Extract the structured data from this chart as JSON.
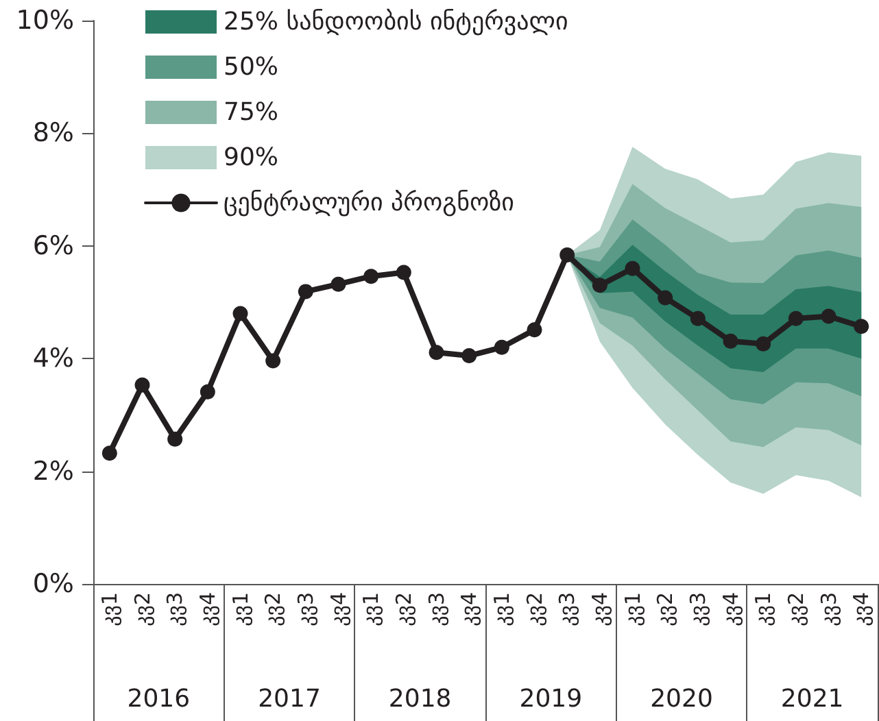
{
  "chart_data": {
    "type": "line",
    "categories": [
      "კვ1",
      "კვ2",
      "კვ3",
      "კვ4",
      "კვ1",
      "კვ2",
      "კვ3",
      "კვ4",
      "კვ1",
      "კვ2",
      "კვ3",
      "კვ4",
      "კვ1",
      "კვ2",
      "კვ3",
      "კვ4",
      "კვ1",
      "კვ2",
      "კვ3",
      "კვ4",
      "კვ1",
      "კვ2",
      "კვ3",
      "კვ4"
    ],
    "series": [
      {
        "type": "area",
        "name": "90%",
        "color": "#b8d4cb",
        "values": [
          null,
          null,
          null,
          null,
          null,
          null,
          null,
          null,
          null,
          null,
          null,
          null,
          null,
          null,
          null,
          null,
          null,
          null,
          null,
          null,
          null,
          null,
          null,
          null
        ],
        "lower": [
          null,
          null,
          null,
          null,
          null,
          null,
          null,
          null,
          null,
          null,
          null,
          null,
          null,
          null,
          5.84,
          4.3,
          3.48,
          2.83,
          2.29,
          1.8,
          1.6,
          1.93,
          1.83,
          1.54
        ],
        "upper": [
          null,
          null,
          null,
          null,
          null,
          null,
          null,
          null,
          null,
          null,
          null,
          null,
          null,
          null,
          5.84,
          6.28,
          7.76,
          7.37,
          7.18,
          6.84,
          6.91,
          7.49,
          7.66,
          7.6
        ]
      },
      {
        "type": "area",
        "name": "75%",
        "color": "#8ab7a8",
        "values": [
          null,
          null,
          null,
          null,
          null,
          null,
          null,
          null,
          null,
          null,
          null,
          null,
          null,
          null,
          null,
          null,
          null,
          null,
          null,
          null,
          null,
          null,
          null,
          null
        ],
        "lower": [
          null,
          null,
          null,
          null,
          null,
          null,
          null,
          null,
          null,
          null,
          null,
          null,
          null,
          null,
          5.84,
          4.63,
          4.23,
          3.63,
          3.08,
          2.53,
          2.43,
          2.78,
          2.73,
          2.46
        ],
        "upper": [
          null,
          null,
          null,
          null,
          null,
          null,
          null,
          null,
          null,
          null,
          null,
          null,
          null,
          null,
          5.84,
          5.98,
          7.1,
          6.67,
          6.37,
          6.06,
          6.1,
          6.66,
          6.76,
          6.69
        ]
      },
      {
        "type": "area",
        "name": "50%",
        "color": "#5a9a86",
        "values": [
          null,
          null,
          null,
          null,
          null,
          null,
          null,
          null,
          null,
          null,
          null,
          null,
          null,
          null,
          null,
          null,
          null,
          null,
          null,
          null,
          null,
          null,
          null,
          null
        ],
        "lower": [
          null,
          null,
          null,
          null,
          null,
          null,
          null,
          null,
          null,
          null,
          null,
          null,
          null,
          null,
          5.84,
          4.9,
          4.73,
          4.18,
          3.73,
          3.28,
          3.19,
          3.58,
          3.56,
          3.33
        ],
        "upper": [
          null,
          null,
          null,
          null,
          null,
          null,
          null,
          null,
          null,
          null,
          null,
          null,
          null,
          null,
          5.84,
          5.72,
          6.47,
          6.02,
          5.52,
          5.35,
          5.34,
          5.83,
          5.92,
          5.79
        ]
      },
      {
        "type": "area",
        "name": "25% სანდოობის ინტერვალი",
        "color": "#2a7a64",
        "values": [
          null,
          null,
          null,
          null,
          null,
          null,
          null,
          null,
          null,
          null,
          null,
          null,
          null,
          null,
          null,
          null,
          null,
          null,
          null,
          null,
          null,
          null,
          null,
          null
        ],
        "lower": [
          null,
          null,
          null,
          null,
          null,
          null,
          null,
          null,
          null,
          null,
          null,
          null,
          null,
          null,
          5.84,
          5.16,
          5.19,
          4.66,
          4.23,
          3.83,
          3.76,
          4.18,
          4.18,
          4.0
        ],
        "upper": [
          null,
          null,
          null,
          null,
          null,
          null,
          null,
          null,
          null,
          null,
          null,
          null,
          null,
          null,
          5.84,
          5.45,
          6.02,
          5.55,
          5.13,
          4.78,
          4.78,
          5.23,
          5.29,
          5.18
        ]
      },
      {
        "name": "ცენტრალური პროგნოზი",
        "color": "#231f20",
        "marker": "circle",
        "values": [
          2.32,
          3.53,
          2.57,
          3.41,
          4.8,
          3.96,
          5.19,
          5.32,
          5.46,
          5.53,
          4.11,
          4.05,
          4.2,
          4.51,
          5.84,
          5.3,
          5.6,
          5.08,
          4.71,
          4.31,
          4.26,
          4.71,
          4.75,
          4.57
        ]
      }
    ],
    "ylim": [
      0,
      10
    ],
    "yticks": [
      {
        "value": 0,
        "label": "0%"
      },
      {
        "value": 2,
        "label": "2%"
      },
      {
        "value": 4,
        "label": "4%"
      },
      {
        "value": 6,
        "label": "6%"
      },
      {
        "value": 8,
        "label": "8%"
      },
      {
        "value": 10,
        "label": "10%"
      }
    ],
    "annotations": [
      "2016",
      "2017",
      "2018",
      "2019",
      "2020",
      "2021"
    ],
    "legend": "top left",
    "grid": false
  }
}
